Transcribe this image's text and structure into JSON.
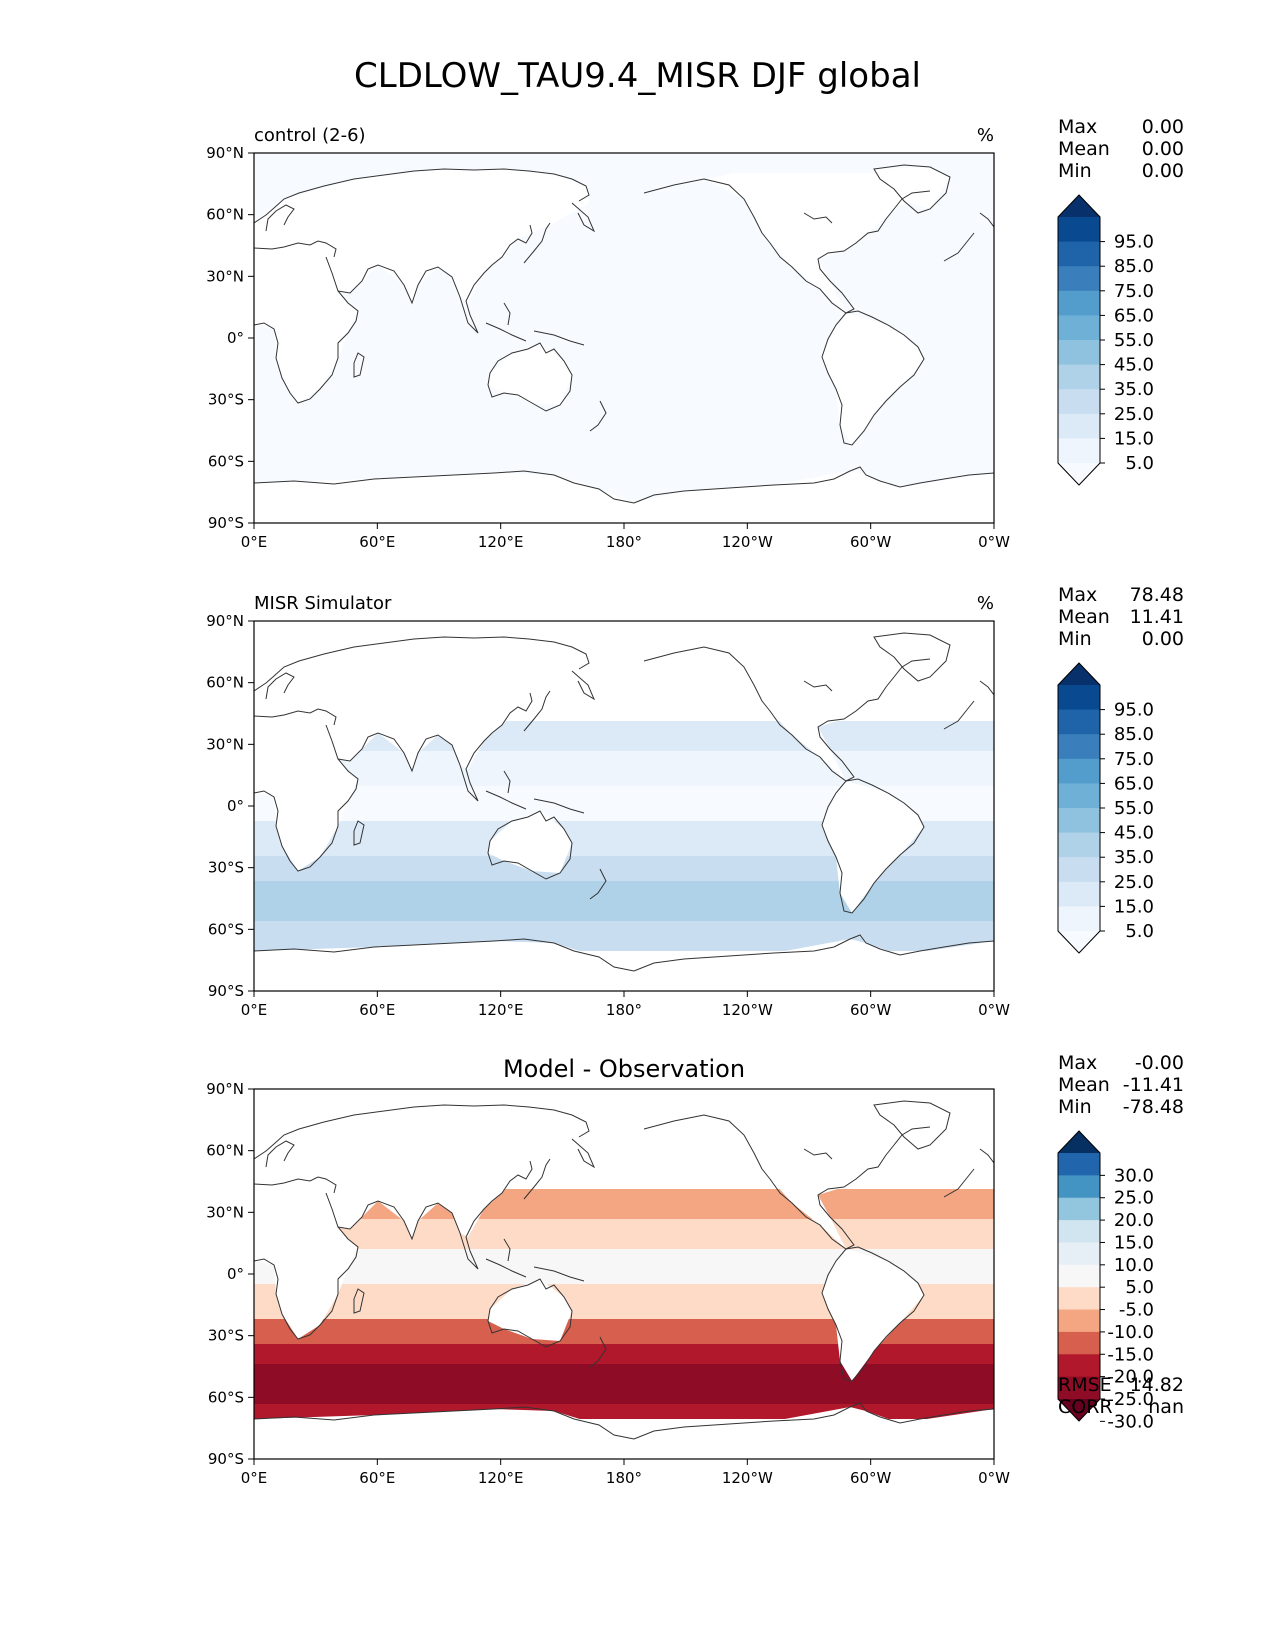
{
  "title": "CLDLOW_TAU9.4_MISR DJF global",
  "lat_ticks": [
    "90°N",
    "60°N",
    "30°N",
    "0°",
    "30°S",
    "60°S",
    "90°S"
  ],
  "lon_ticks": [
    "0°E",
    "60°E",
    "120°E",
    "180°",
    "120°W",
    "60°W",
    "0°W"
  ],
  "stat_labels": {
    "max": "Max",
    "mean": "Mean",
    "min": "Min",
    "rmse": "RMSE",
    "corr": "CORR"
  },
  "panels": [
    {
      "id": "control",
      "title_left": "control (2-6)",
      "title_center": "",
      "units": "%",
      "stats": {
        "max": "0.00",
        "mean": "0.00",
        "min": "0.00"
      },
      "colorbar": {
        "labels": [
          "95.0",
          "85.0",
          "75.0",
          "65.0",
          "55.0",
          "45.0",
          "35.0",
          "25.0",
          "15.0",
          "5.0"
        ],
        "colors": [
          "#08306b",
          "#084990",
          "#1f63a8",
          "#3a7fbc",
          "#529dcc",
          "#6fb0d7",
          "#8fc2de",
          "#b0d2e8",
          "#c9ddf0",
          "#dce9f6",
          "#eef5fc",
          "#f7fbff"
        ]
      }
    },
    {
      "id": "misr",
      "title_left": "MISR Simulator",
      "title_center": "",
      "units": "%",
      "stats": {
        "max": "78.48",
        "mean": "11.41",
        "min": "0.00"
      },
      "colorbar": {
        "labels": [
          "95.0",
          "85.0",
          "75.0",
          "65.0",
          "55.0",
          "45.0",
          "35.0",
          "25.0",
          "15.0",
          "5.0"
        ],
        "colors": [
          "#08306b",
          "#084990",
          "#1f63a8",
          "#3a7fbc",
          "#529dcc",
          "#6fb0d7",
          "#8fc2de",
          "#b0d2e8",
          "#c9ddf0",
          "#dce9f6",
          "#eef5fc",
          "#f7fbff"
        ]
      }
    },
    {
      "id": "diff",
      "title_left": "",
      "title_center": "Model - Observation",
      "units": "",
      "stats": {
        "max": "-0.00",
        "mean": "-11.41",
        "min": "-78.48",
        "rmse": "14.82",
        "corr": "nan"
      },
      "colorbar": {
        "labels": [
          "30.0",
          "25.0",
          "20.0",
          "15.0",
          "10.0",
          "5.0",
          "-5.0",
          "-10.0",
          "-15.0",
          "-20.0",
          "-25.0",
          "-30.0"
        ],
        "colors": [
          "#053061",
          "#2166ac",
          "#4393c3",
          "#92c5de",
          "#d1e5f0",
          "#e7eff6",
          "#f7f7f7",
          "#fddbc7",
          "#f4a582",
          "#d6604d",
          "#b2182b",
          "#8e0c25",
          "#67001f"
        ]
      }
    }
  ]
}
